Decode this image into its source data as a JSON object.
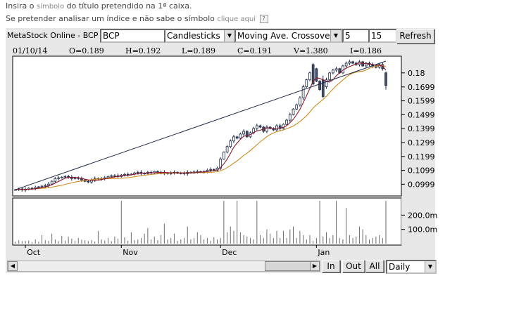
{
  "intro": {
    "line1_pre": "Insira o",
    "line1_link": "símbolo",
    "line1_post": "do título pretendido na 1ª caixa.",
    "line2_pre": "Se pretender analisar um índice e não sabe o símbolo",
    "line2_link": "clique aqui"
  },
  "toolbar": {
    "panel_label": "MetaStock Online - BCP",
    "symbol_value": "BCP",
    "chart_type": "Candlesticks",
    "indicator": "Moving Ave. Crossover",
    "param1": "5",
    "param2": "15",
    "refresh_label": "Refresh"
  },
  "ohlc": {
    "date": "01/10/14",
    "open": "O=0.189",
    "high": "H=0.192",
    "low": "L=0.189",
    "close": "C=0.191",
    "volume": "V=1.380",
    "indicator": "I=0.186"
  },
  "bottom": {
    "in_label": "In",
    "out_label": "Out",
    "all_label": "All",
    "period": "Daily"
  },
  "colors": {
    "candle_up": "#ffffff",
    "candle_down": "#47536a",
    "ma_fast": "#8b1a2a",
    "ma_slow": "#d08a1c",
    "trend": "#1b2746",
    "volume": "#6a6a6a"
  },
  "chart_data": {
    "type": "candlestick",
    "x_month_labels": [
      "Oct",
      "Nov",
      "Dec",
      "Jan"
    ],
    "x_month_start_index": [
      3,
      32,
      62,
      91
    ],
    "price_ticks": [
      "0.18",
      "0.1699",
      "0.1599",
      "0.1499",
      "0.1399",
      "0.1299",
      "0.1199",
      "0.1099",
      "0.0999"
    ],
    "price_tick_values": [
      0.18,
      0.1699,
      0.1599,
      0.1499,
      0.1399,
      0.1299,
      0.1199,
      0.1099,
      0.0999
    ],
    "price_range": [
      0.093,
      0.189
    ],
    "volume_ticks": [
      "200.0m",
      "100.0m"
    ],
    "volume_tick_values": [
      200,
      100
    ],
    "volume_range": [
      0,
      310
    ],
    "volume_unit": "m",
    "moving_averages": [
      5,
      15
    ],
    "closes": [
      0.096,
      0.0965,
      0.0958,
      0.0962,
      0.097,
      0.0968,
      0.0975,
      0.098,
      0.0985,
      0.099,
      0.1,
      0.102,
      0.104,
      0.1045,
      0.105,
      0.1055,
      0.105,
      0.104,
      0.1045,
      0.104,
      0.103,
      0.102,
      0.1015,
      0.103,
      0.104,
      0.1035,
      0.104,
      0.1045,
      0.1055,
      0.106,
      0.106,
      0.1055,
      0.1065,
      0.107,
      0.1068,
      0.1072,
      0.108,
      0.1085,
      0.1078,
      0.1075,
      0.1085,
      0.108,
      0.109,
      0.1082,
      0.1085,
      0.108,
      0.1075,
      0.1082,
      0.1085,
      0.1078,
      0.108,
      0.1075,
      0.1085,
      0.1082,
      0.1088,
      0.109,
      0.1085,
      0.109,
      0.11,
      0.1105,
      0.11,
      0.1115,
      0.118,
      0.123,
      0.127,
      0.131,
      0.134,
      0.133,
      0.136,
      0.138,
      0.134,
      0.137,
      0.14,
      0.142,
      0.141,
      0.138,
      0.141,
      0.14,
      0.139,
      0.142,
      0.14,
      0.143,
      0.146,
      0.15,
      0.154,
      0.157,
      0.162,
      0.17,
      0.175,
      0.18,
      0.183,
      0.174,
      0.168,
      0.17,
      0.175,
      0.18,
      0.182,
      0.183,
      0.18,
      0.185,
      0.187,
      0.188,
      0.187,
      0.186,
      0.188,
      0.185,
      0.187,
      0.186,
      0.185,
      0.184,
      0.186,
      0.183,
      0.172
    ],
    "big_down_candles": [
      {
        "index": 90,
        "open": 0.186,
        "close": 0.172,
        "high": 0.187,
        "low": 0.171
      },
      {
        "index": 93,
        "open": 0.175,
        "close": 0.163,
        "high": 0.178,
        "low": 0.162
      },
      {
        "index": 112,
        "open": 0.18,
        "close": 0.171,
        "high": 0.181,
        "low": 0.168
      }
    ],
    "volumes": [
      15,
      25,
      18,
      20,
      22,
      12,
      30,
      14,
      60,
      25,
      20,
      70,
      30,
      18,
      55,
      22,
      48,
      35,
      20,
      40,
      28,
      24,
      18,
      25,
      15,
      90,
      30,
      22,
      40,
      18,
      50,
      35,
      300,
      45,
      20,
      80,
      25,
      30,
      40,
      70,
      110,
      30,
      50,
      25,
      60,
      140,
      30,
      40,
      70,
      20,
      30,
      40,
      120,
      30,
      40,
      80,
      60,
      30,
      40,
      20,
      45,
      30,
      40,
      300,
      80,
      120,
      90,
      300,
      80,
      60,
      50,
      40,
      30,
      300,
      60,
      40,
      100,
      70,
      40,
      90,
      40,
      90,
      40,
      100,
      120,
      40,
      90,
      60,
      30,
      60,
      20,
      40,
      300,
      50,
      80,
      40,
      60,
      300,
      40,
      30,
      250,
      60,
      40,
      50,
      120,
      100,
      60,
      30,
      40,
      50,
      60,
      40,
      300
    ]
  }
}
